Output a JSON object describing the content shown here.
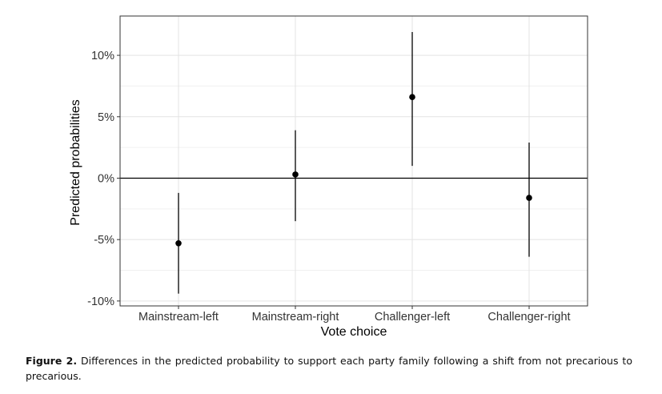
{
  "chart_data": {
    "type": "scatter",
    "subtype": "point-with-error-bars",
    "xlabel": "Vote choice",
    "ylabel": "Predicted probabilities",
    "categories": [
      "Mainstream-left",
      "Mainstream-right",
      "Challenger-left",
      "Challenger-right"
    ],
    "points": [
      {
        "category": "Mainstream-left",
        "estimate": -5.3,
        "lower": -9.4,
        "upper": -1.2
      },
      {
        "category": "Mainstream-right",
        "estimate": 0.3,
        "lower": -3.5,
        "upper": 3.9
      },
      {
        "category": "Challenger-left",
        "estimate": 6.6,
        "lower": 1.0,
        "upper": 11.9
      },
      {
        "category": "Challenger-right",
        "estimate": -1.6,
        "lower": -6.4,
        "upper": 2.9
      }
    ],
    "yticks": [
      -10,
      -5,
      0,
      5,
      10
    ],
    "ytick_labels": [
      "-10%",
      "-5%",
      "0%",
      "5%",
      "10%"
    ],
    "ylim": [
      -10.4,
      13.2
    ],
    "reference_line": 0,
    "grid": true
  },
  "caption": {
    "label": "Figure 2.",
    "text": "Differences in the predicted probability to support each party family following a shift from not precarious to precarious."
  }
}
